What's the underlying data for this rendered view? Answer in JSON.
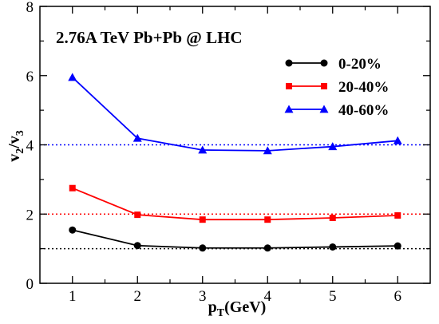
{
  "chart_data": {
    "type": "line",
    "title": "2.76A TeV Pb+Pb @ LHC",
    "xlabel": {
      "main": "p",
      "sub": "T",
      "rest": "(GeV)"
    },
    "ylabel": {
      "main": "v",
      "sub1": "2",
      "slash": "/v",
      "sub2": "3"
    },
    "xlim": [
      0.5,
      6.5
    ],
    "ylim": [
      0,
      8
    ],
    "xticks": [
      "1",
      "2",
      "3",
      "4",
      "5",
      "6"
    ],
    "yticks": [
      "0",
      "2",
      "4",
      "6",
      "8"
    ],
    "grid": false,
    "legend_position": "top-right",
    "x": [
      1,
      2,
      3,
      4,
      5,
      6
    ],
    "series": [
      {
        "name": "0-20%",
        "color": "#000000",
        "marker": "circle",
        "values": [
          1.54,
          1.09,
          1.02,
          1.02,
          1.05,
          1.08
        ],
        "reference": 1.0
      },
      {
        "name": "20-40%",
        "color": "#ff0000",
        "marker": "square",
        "values": [
          2.75,
          1.98,
          1.84,
          1.84,
          1.89,
          1.96
        ],
        "reference": 2.0
      },
      {
        "name": "40-60%",
        "color": "#0000ff",
        "marker": "triangle",
        "values": [
          5.95,
          4.19,
          3.85,
          3.83,
          3.95,
          4.12
        ],
        "reference": 4.0
      }
    ]
  }
}
